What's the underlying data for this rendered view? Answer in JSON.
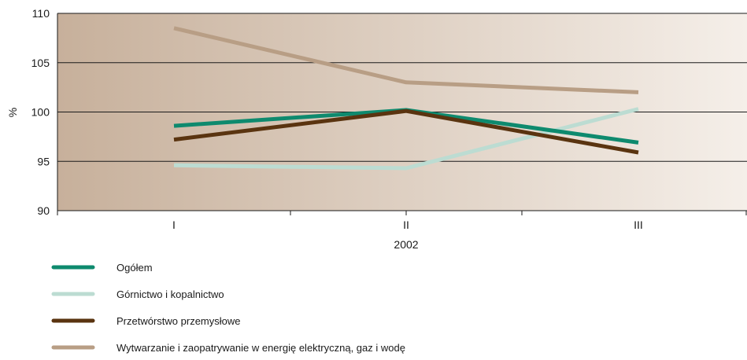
{
  "chart_data": {
    "type": "line",
    "categories": [
      "I",
      "II",
      "III"
    ],
    "xlabel": "2002",
    "ylabel": "%",
    "ylim": [
      90,
      110
    ],
    "yticks": [
      90,
      95,
      100,
      105,
      110
    ],
    "grid": true,
    "legend_position": "bottom-left",
    "series": [
      {
        "name": "Ogółem",
        "values": [
          98.6,
          100.2,
          96.9
        ],
        "color": "#0e8a6e"
      },
      {
        "name": "Górnictwo i kopalnictwo",
        "values": [
          94.6,
          94.3,
          100.3
        ],
        "color": "#bcdcd2"
      },
      {
        "name": "Przetwórstwo przemysłowe",
        "values": [
          97.2,
          100.1,
          95.9
        ],
        "color": "#5a3410"
      },
      {
        "name": "Wytwarzanie i zaopatrywanie w energię elektryczną, gaz i wodę",
        "values": [
          108.5,
          103.0,
          102.0
        ],
        "color": "#b89e85"
      }
    ],
    "background_gradient": [
      "#c7b09b",
      "#f5efe9"
    ]
  }
}
